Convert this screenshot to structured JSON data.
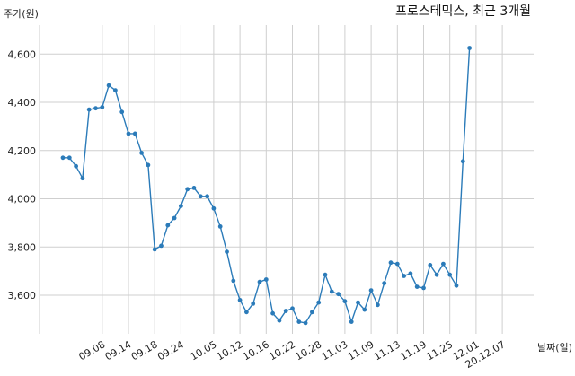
{
  "chart_data": {
    "type": "line",
    "title": "프로스테믹스, 최근 3개월",
    "ylabel": "주가(원)",
    "xlabel": "날짜(일)",
    "ylim": [
      3440,
      4720
    ],
    "y_ticks": [
      3600,
      3800,
      4000,
      4200,
      4400,
      4600
    ],
    "y_tick_labels": [
      "3,600",
      "3,800",
      "4,000",
      "4,200",
      "4,400",
      "4,600"
    ],
    "grid": true,
    "color": "#2b7bb9",
    "x_ticks": [
      {
        "label": "09.08",
        "index": 6
      },
      {
        "label": "09.14",
        "index": 10
      },
      {
        "label": "09.18",
        "index": 14
      },
      {
        "label": "09.24",
        "index": 18
      },
      {
        "label": "10.05",
        "index": 23
      },
      {
        "label": "10.12",
        "index": 27
      },
      {
        "label": "10.16",
        "index": 31
      },
      {
        "label": "10.22",
        "index": 35
      },
      {
        "label": "10.28",
        "index": 39
      },
      {
        "label": "11.03",
        "index": 43
      },
      {
        "label": "11.09",
        "index": 47
      },
      {
        "label": "11.13",
        "index": 51
      },
      {
        "label": "11.19",
        "index": 55
      },
      {
        "label": "11.25",
        "index": 59
      },
      {
        "label": "12.01",
        "index": 63
      },
      {
        "label": "20.12.07",
        "index": 67
      }
    ],
    "values": [
      4170,
      4170,
      4135,
      4085,
      4370,
      4375,
      4380,
      4470,
      4450,
      4360,
      4270,
      4270,
      4190,
      4140,
      3790,
      3805,
      3890,
      3920,
      3970,
      4040,
      4045,
      4010,
      4010,
      3960,
      3885,
      3780,
      3660,
      3580,
      3530,
      3565,
      3655,
      3665,
      3525,
      3495,
      3535,
      3545,
      3490,
      3485,
      3530,
      3570,
      3685,
      3615,
      3605,
      3575,
      3490,
      3570,
      3540,
      3620,
      3560,
      3650,
      3735,
      3730,
      3680,
      3690,
      3635,
      3630,
      3725,
      3685,
      3730,
      3685,
      3640,
      4155,
      4625
    ]
  }
}
